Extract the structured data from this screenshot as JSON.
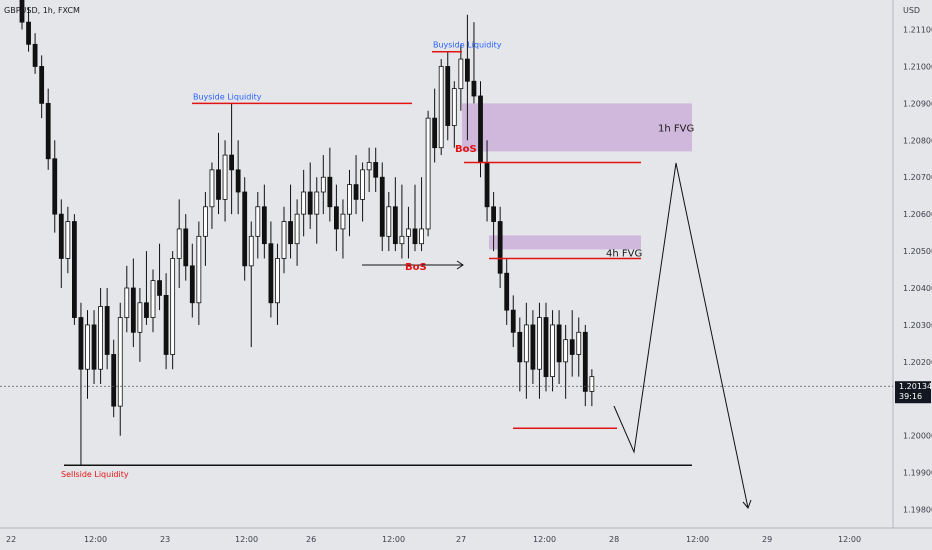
{
  "header": {
    "symbol_line": "GBPUSD, 1h, FXCM",
    "currency": "USD"
  },
  "chart_data": {
    "type": "candlestick",
    "ylim": [
      1.1975,
      1.2118
    ],
    "y_ticks": [
      "1.21100",
      "1.21000",
      "1.20900",
      "1.20800",
      "1.20700",
      "1.20600",
      "1.20500",
      "1.20400",
      "1.20300",
      "1.20200",
      "1.20000",
      "1.19900",
      "1.19800"
    ],
    "x_ticks": [
      "22",
      "12:00",
      "23",
      "12:00",
      "26",
      "12:00",
      "27",
      "12:00",
      "28",
      "12:00",
      "29",
      "12:00"
    ],
    "current_price": {
      "value": "1.20134",
      "countdown": "39:16"
    },
    "candles": [
      [
        1.2118,
        1.2122,
        1.211,
        1.2112
      ],
      [
        1.2112,
        1.2116,
        1.2104,
        1.2106
      ],
      [
        1.2106,
        1.2109,
        1.2098,
        1.21
      ],
      [
        1.21,
        1.2103,
        1.2086,
        1.209
      ],
      [
        1.209,
        1.2094,
        1.2072,
        1.2075
      ],
      [
        1.2075,
        1.208,
        1.2055,
        1.206
      ],
      [
        1.206,
        1.2064,
        1.204,
        1.2048
      ],
      [
        1.2048,
        1.2062,
        1.2044,
        1.2058
      ],
      [
        1.2058,
        1.206,
        1.203,
        1.2032
      ],
      [
        1.2032,
        1.2036,
        1.1992,
        1.2018
      ],
      [
        1.2018,
        1.2034,
        1.201,
        1.203
      ],
      [
        1.203,
        1.2034,
        1.2014,
        1.2018
      ],
      [
        1.2018,
        1.204,
        1.2014,
        1.2035
      ],
      [
        1.2035,
        1.204,
        1.2018,
        1.2022
      ],
      [
        1.2022,
        1.2026,
        1.2005,
        1.2008
      ],
      [
        1.2008,
        1.2036,
        1.2,
        1.2032
      ],
      [
        1.2032,
        1.2046,
        1.2028,
        1.204
      ],
      [
        1.204,
        1.2048,
        1.2024,
        1.2028
      ],
      [
        1.2028,
        1.204,
        1.202,
        1.2036
      ],
      [
        1.2036,
        1.205,
        1.203,
        1.2032
      ],
      [
        1.2032,
        1.2045,
        1.2028,
        1.2042
      ],
      [
        1.2042,
        1.2052,
        1.2034,
        1.2038
      ],
      [
        1.2038,
        1.2044,
        1.2018,
        1.2022
      ],
      [
        1.2022,
        1.205,
        1.2018,
        1.2048
      ],
      [
        1.2048,
        1.2064,
        1.204,
        1.2056
      ],
      [
        1.2056,
        1.206,
        1.2042,
        1.2046
      ],
      [
        1.2046,
        1.2052,
        1.2032,
        1.2036
      ],
      [
        1.2036,
        1.2058,
        1.203,
        1.2054
      ],
      [
        1.2054,
        1.2066,
        1.2046,
        1.2062
      ],
      [
        1.2062,
        1.2074,
        1.2056,
        1.2072
      ],
      [
        1.2072,
        1.2082,
        1.206,
        1.2064
      ],
      [
        1.2064,
        1.208,
        1.2058,
        1.2076
      ],
      [
        1.2076,
        1.209,
        1.206,
        1.2072
      ],
      [
        1.2072,
        1.208,
        1.206,
        1.2066
      ],
      [
        1.2066,
        1.207,
        1.2042,
        1.2046
      ],
      [
        1.2046,
        1.2058,
        1.2024,
        1.2054
      ],
      [
        1.2054,
        1.2066,
        1.2048,
        1.2062
      ],
      [
        1.2062,
        1.2068,
        1.2048,
        1.2052
      ],
      [
        1.2052,
        1.2058,
        1.2032,
        1.2036
      ],
      [
        1.2036,
        1.2052,
        1.203,
        1.2048
      ],
      [
        1.2048,
        1.2062,
        1.2044,
        1.2058
      ],
      [
        1.2058,
        1.2068,
        1.2048,
        1.2052
      ],
      [
        1.2052,
        1.2064,
        1.2046,
        1.206
      ],
      [
        1.206,
        1.2072,
        1.2054,
        1.2066
      ],
      [
        1.2066,
        1.2074,
        1.2056,
        1.206
      ],
      [
        1.206,
        1.207,
        1.2052,
        1.2066
      ],
      [
        1.2066,
        1.2076,
        1.206,
        1.207
      ],
      [
        1.207,
        1.2078,
        1.2058,
        1.2062
      ],
      [
        1.2062,
        1.2068,
        1.205,
        1.2056
      ],
      [
        1.2056,
        1.2064,
        1.2048,
        1.206
      ],
      [
        1.206,
        1.2072,
        1.2054,
        1.2068
      ],
      [
        1.2068,
        1.2076,
        1.206,
        1.2064
      ],
      [
        1.2064,
        1.2074,
        1.2058,
        1.2072
      ],
      [
        1.2072,
        1.2078,
        1.2066,
        1.2074
      ],
      [
        1.2074,
        1.2078,
        1.2066,
        1.207
      ],
      [
        1.207,
        1.2074,
        1.205,
        1.2054
      ],
      [
        1.2054,
        1.2066,
        1.205,
        1.2062
      ],
      [
        1.2062,
        1.207,
        1.205,
        1.2052
      ],
      [
        1.2052,
        1.2068,
        1.2048,
        1.2054
      ],
      [
        1.2054,
        1.2062,
        1.2048,
        1.2056
      ],
      [
        1.2056,
        1.2068,
        1.205,
        1.2052
      ],
      [
        1.2052,
        1.207,
        1.205,
        1.2056
      ],
      [
        1.2056,
        1.2088,
        1.2054,
        1.2086
      ],
      [
        1.2086,
        1.2094,
        1.2074,
        1.2078
      ],
      [
        1.2078,
        1.2102,
        1.2076,
        1.21
      ],
      [
        1.21,
        1.2104,
        1.208,
        1.2084
      ],
      [
        1.2084,
        1.2096,
        1.2078,
        1.2094
      ],
      [
        1.2094,
        1.2106,
        1.2088,
        1.2102
      ],
      [
        1.2102,
        1.2114,
        1.208,
        1.2096
      ],
      [
        1.2096,
        1.2112,
        1.209,
        1.2092
      ],
      [
        1.2092,
        1.2096,
        1.207,
        1.2074
      ],
      [
        1.2074,
        1.208,
        1.2058,
        1.2062
      ],
      [
        1.2062,
        1.2066,
        1.205,
        1.2058
      ],
      [
        1.2058,
        1.2062,
        1.204,
        1.2044
      ],
      [
        1.2044,
        1.2048,
        1.203,
        1.2034
      ],
      [
        1.2034,
        1.2038,
        1.2024,
        1.2028
      ],
      [
        1.2028,
        1.2032,
        1.2012,
        1.202
      ],
      [
        1.202,
        1.2036,
        1.201,
        1.203
      ],
      [
        1.203,
        1.2034,
        1.2014,
        1.2018
      ],
      [
        1.2018,
        1.2036,
        1.201,
        1.2032
      ],
      [
        1.2032,
        1.2036,
        1.2012,
        1.2016
      ],
      [
        1.2016,
        1.2034,
        1.2012,
        1.203
      ],
      [
        1.203,
        1.2034,
        1.2014,
        1.202
      ],
      [
        1.202,
        1.203,
        1.201,
        1.2026
      ],
      [
        1.2026,
        1.2034,
        1.2016,
        1.2022
      ],
      [
        1.2022,
        1.2032,
        1.2016,
        1.2028
      ],
      [
        1.2028,
        1.203,
        1.2008,
        1.2012
      ],
      [
        1.2012,
        1.2018,
        1.2008,
        1.2016
      ]
    ],
    "annotations": {
      "buyside_left": {
        "label": "Buyside Liquidity",
        "price": 1.209
      },
      "buyside_right": {
        "label": "Buyside Liquidity",
        "price": 1.2104
      },
      "sellside": {
        "label": "Sellside Liquidity",
        "price": 1.1992
      },
      "bos1": {
        "label": "BoS"
      },
      "bos2": {
        "label": "BoS"
      },
      "fvg1h": {
        "label": "1h FVG",
        "top": 1.209,
        "bottom": 1.2077
      },
      "fvg4h": {
        "label": "4h FVG",
        "top": 1.2051,
        "bottom": 1.2048
      },
      "low_line_price": 1.2002,
      "fvg1h_line_price": 1.2074
    },
    "projection": [
      [
        1.2012,
        "28 early"
      ],
      [
        1.2,
        "28"
      ],
      [
        1.2078,
        "28 12:00"
      ],
      [
        1.198,
        "29"
      ]
    ]
  }
}
